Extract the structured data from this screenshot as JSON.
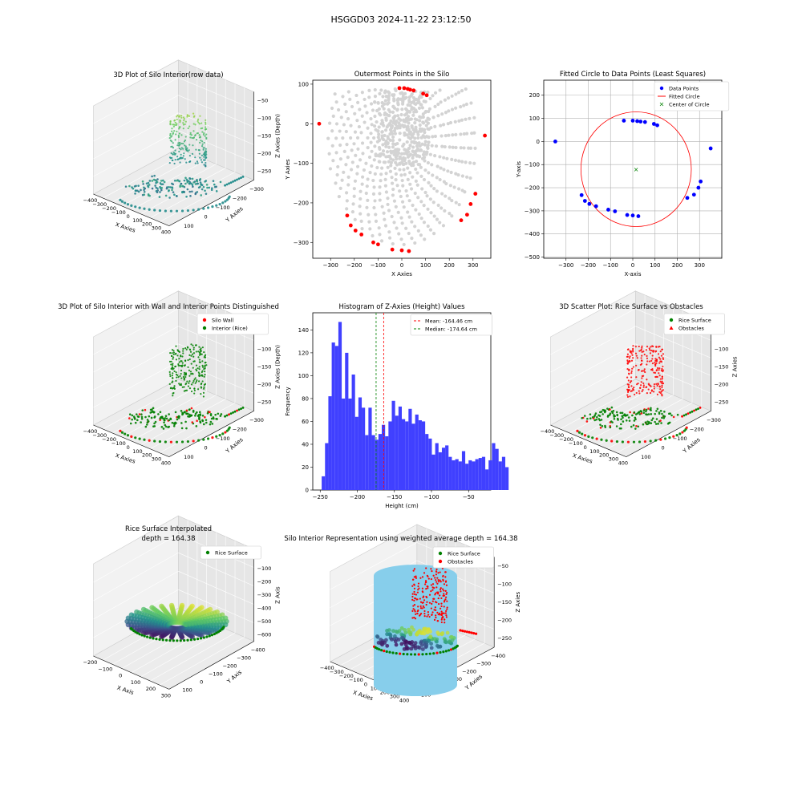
{
  "figure": {
    "suptitle": "HSGGD03 2024-11-22 23:12:50"
  },
  "chart_data": [
    {
      "id": "p1",
      "type": "scatter3d",
      "title": "3D Plot of Silo Interior(row data)",
      "xlabel": "X Axies",
      "ylabel": "Y Axies",
      "zlabel": "Z Axies (Depth)",
      "xticks": [
        "−400",
        "−300",
        "−200",
        "−100",
        "0",
        "100",
        "200",
        "300",
        "400"
      ],
      "yticks": [
        "100",
        "0",
        "−100",
        "−200",
        "−300"
      ],
      "zticks": [
        "−50",
        "−100",
        "−150",
        "−200",
        "−250"
      ],
      "colors": {
        "low": "#440154",
        "mid": "#21918c",
        "high": "#fde725"
      }
    },
    {
      "id": "p2",
      "type": "scatter",
      "title": "Outermost Points in the Silo",
      "xlabel": "X Axies",
      "ylabel": "Y Axies",
      "xlim": [
        -375,
        375
      ],
      "ylim": [
        -340,
        110
      ],
      "xticks": [
        -300,
        -200,
        -100,
        0,
        100,
        200,
        300
      ],
      "yticks": [
        100,
        0,
        -100,
        -200,
        -300
      ],
      "xtick_labels": [
        "−300",
        "−200",
        "−100",
        "0",
        "100",
        "200",
        "300"
      ],
      "ytick_labels": [
        "100",
        "0",
        "−100",
        "−200",
        "−300"
      ],
      "colors": {
        "all": "#d3d3d3",
        "outer": "#ff0000"
      },
      "outer_points": [
        [
          -348,
          0
        ],
        [
          -10,
          90
        ],
        [
          10,
          90
        ],
        [
          25,
          88
        ],
        [
          35,
          86
        ],
        [
          50,
          84
        ],
        [
          90,
          76
        ],
        [
          105,
          72
        ],
        [
          350,
          -30
        ],
        [
          310,
          -177
        ],
        [
          290,
          -203
        ],
        [
          275,
          -230
        ],
        [
          250,
          -244
        ],
        [
          -230,
          -232
        ],
        [
          -215,
          -257
        ],
        [
          -195,
          -270
        ],
        [
          -170,
          -280
        ],
        [
          -120,
          -300
        ],
        [
          -100,
          -305
        ],
        [
          -40,
          -318
        ],
        [
          0,
          -320
        ],
        [
          30,
          -322
        ]
      ]
    },
    {
      "id": "p3",
      "type": "scatter",
      "title": "Fitted Circle to Data Points (Least Squares)",
      "xlabel": "X-axis",
      "ylabel": "Y-axis",
      "xlim": [
        -400,
        400
      ],
      "ylim": [
        -505,
        265
      ],
      "xticks": [
        -300,
        -200,
        -100,
        0,
        100,
        200,
        300
      ],
      "yticks": [
        200,
        100,
        0,
        -100,
        -200,
        -300,
        -400,
        -500
      ],
      "xtick_labels": [
        "−300",
        "−200",
        "−100",
        "0",
        "100",
        "200",
        "300"
      ],
      "ytick_labels": [
        "200",
        "100",
        "0",
        "−100",
        "−200",
        "−300",
        "−400",
        "−500"
      ],
      "grid": true,
      "legend": {
        "position": "top-right",
        "entries": [
          "Data Points",
          "Fitted Circle",
          "Center of Circle"
        ]
      },
      "colors": {
        "points": "#0000ff",
        "circle": "#ff0000",
        "center": "#008000"
      },
      "points": [
        [
          -348,
          0
        ],
        [
          -40,
          90
        ],
        [
          0,
          90
        ],
        [
          20,
          88
        ],
        [
          35,
          86
        ],
        [
          55,
          84
        ],
        [
          95,
          76
        ],
        [
          110,
          70
        ],
        [
          350,
          -30
        ],
        [
          305,
          -173
        ],
        [
          295,
          -200
        ],
        [
          275,
          -230
        ],
        [
          245,
          -244
        ],
        [
          -230,
          -232
        ],
        [
          -215,
          -257
        ],
        [
          -195,
          -270
        ],
        [
          -165,
          -280
        ],
        [
          -110,
          -295
        ],
        [
          -80,
          -302
        ],
        [
          -25,
          -318
        ],
        [
          0,
          -320
        ],
        [
          25,
          -323
        ]
      ],
      "circle": {
        "cx": 15,
        "cy": -120,
        "r": 248
      }
    },
    {
      "id": "p4",
      "type": "scatter3d",
      "title": "3D Plot of Silo Interior with Wall and Interior Points Distinguished",
      "xlabel": "X Axies",
      "ylabel": "Y Axies",
      "zlabel": "Z Axies (Depth)",
      "xticks": [
        "−400",
        "−300",
        "−200",
        "−100",
        "0",
        "100",
        "200",
        "300",
        "400"
      ],
      "yticks": [
        "100",
        "0",
        "−100",
        "−200",
        "−300"
      ],
      "zticks": [
        "−50",
        "−100",
        "−150",
        "−200",
        "−250"
      ],
      "legend": {
        "position": "top-right",
        "entries": [
          "Silo Wall",
          "Interior (Rice)"
        ]
      },
      "colors": {
        "wall": "#ff0000",
        "interior": "#008000"
      }
    },
    {
      "id": "p5",
      "type": "bar",
      "title": "Histogram of Z-Axies (Height) Values",
      "xlabel": "Height (cm)",
      "ylabel": "Frequency",
      "xlim": [
        -260,
        -20
      ],
      "ylim": [
        0,
        155
      ],
      "xticks": [
        -250,
        -200,
        -150,
        -100,
        -50
      ],
      "xtick_labels": [
        "−250",
        "−200",
        "−150",
        "−100",
        "−50"
      ],
      "yticks": [
        0,
        20,
        40,
        60,
        80,
        100,
        120,
        140
      ],
      "bin_start": -248,
      "bin_width": 4.5,
      "values": [
        12,
        41,
        82,
        129,
        126,
        147,
        80,
        120,
        80,
        101,
        64,
        81,
        72,
        48,
        72,
        48,
        44,
        49,
        57,
        47,
        60,
        78,
        65,
        73,
        62,
        60,
        71,
        58,
        66,
        61,
        60,
        49,
        45,
        31,
        41,
        33,
        37,
        39,
        29,
        26,
        27,
        25,
        34,
        23,
        26,
        25,
        27,
        28,
        29,
        18,
        26,
        41,
        36,
        25,
        29,
        20
      ],
      "mean": -164.46,
      "median": -174.64,
      "legend": {
        "position": "top-right",
        "entries": [
          "Mean: -164.46 cm",
          "Median: -174.64 cm"
        ]
      },
      "colors": {
        "bars": "#4040ff",
        "mean": "#ff0000",
        "median": "#008000"
      }
    },
    {
      "id": "p6",
      "type": "scatter3d",
      "title": "3D Scatter Plot: Rice Surface vs Obstacles",
      "xlabel": "X Axies",
      "ylabel": "Y Axies",
      "zlabel": "Z Axies",
      "xticks": [
        "−400",
        "−300",
        "−200",
        "−100",
        "0",
        "100",
        "200",
        "300",
        "400"
      ],
      "yticks": [
        "100",
        "0",
        "−100",
        "−200",
        "−300"
      ],
      "zticks": [
        "−50",
        "−100",
        "−150",
        "−200",
        "−250"
      ],
      "legend": {
        "position": "top-right",
        "entries": [
          "Rice Surface",
          "Obstacles"
        ]
      },
      "colors": {
        "surface": "#008000",
        "obstacles": "#ff0000"
      }
    },
    {
      "id": "p7",
      "type": "surface3d",
      "title": "Rice Surface Interpolated",
      "subtitle": "depth = 164.38",
      "xlabel": "X Axis",
      "ylabel": "Y Axis",
      "zlabel": "Z Axis",
      "xticks": [
        "−200",
        "−100",
        "0",
        "100",
        "200",
        "300"
      ],
      "yticks": [
        "100",
        "0",
        "−100",
        "−200",
        "−300",
        "−400"
      ],
      "zticks": [
        "0",
        "−100",
        "−200",
        "−300",
        "−400",
        "−500",
        "−600"
      ],
      "legend": {
        "position": "top-right",
        "entries": [
          "Rice Surface"
        ]
      },
      "colors": {
        "surface": "#008000"
      }
    },
    {
      "id": "p8",
      "type": "scatter3d",
      "title": "Silo Interior Representation using weighted average depth = 164.38",
      "xlabel": "X Axies",
      "ylabel": "Y Axies",
      "zlabel": "Z Axies",
      "xticks": [
        "−400",
        "−300",
        "−200",
        "−100",
        "0",
        "100",
        "200",
        "300",
        "400"
      ],
      "yticks": [
        "100",
        "0",
        "−100",
        "−200",
        "−300",
        "−400"
      ],
      "zticks": [
        "−50",
        "−100",
        "−150",
        "−200",
        "−250"
      ],
      "legend": {
        "position": "top-right",
        "entries": [
          "Rice Surface",
          "Obstacles"
        ]
      },
      "colors": {
        "surface": "#008000",
        "obstacles": "#ff0000",
        "cylinder": "#87ceeb"
      }
    }
  ]
}
